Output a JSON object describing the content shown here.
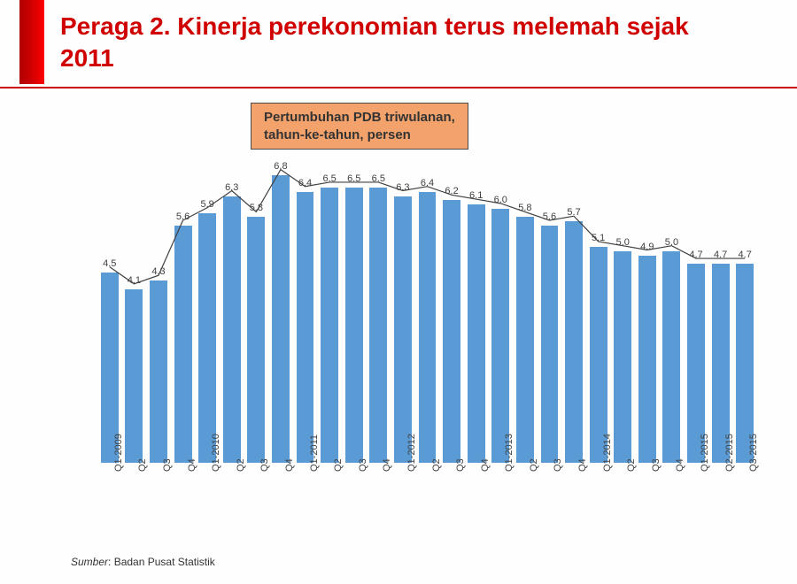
{
  "header": {
    "title": "Peraga 2. Kinerja perekonomian terus melemah sejak 2011"
  },
  "subtitle": {
    "line1": "Pertumbuhan PDB triwulanan,",
    "line2": "tahun-ke-tahun, persen"
  },
  "chart": {
    "type": "bar+line",
    "ymax": 7.0,
    "bar_color": "#5b9bd5",
    "line_color": "#404040",
    "label_color": "#404040",
    "label_fontsize": 11,
    "bar_width_ratio": 0.72,
    "categories": [
      "Q1-2009",
      "Q2",
      "Q3",
      "Q4",
      "Q1-2010",
      "Q2",
      "Q3",
      "Q4",
      "Q1-2011",
      "Q2",
      "Q3",
      "Q4",
      "Q1-2012",
      "Q2",
      "Q3",
      "Q4",
      "Q1-2013",
      "Q2",
      "Q3",
      "Q4",
      "Q1-2014",
      "Q2",
      "Q3",
      "Q4",
      "Q1-2015",
      "Q2-2015",
      "Q3-2015"
    ],
    "values": [
      4.5,
      4.1,
      4.3,
      5.6,
      5.9,
      6.3,
      5.8,
      6.8,
      6.4,
      6.5,
      6.5,
      6.5,
      6.3,
      6.4,
      6.2,
      6.1,
      6.0,
      5.8,
      5.6,
      5.7,
      5.1,
      5.0,
      4.9,
      5.0,
      4.7,
      4.7,
      4.7
    ]
  },
  "source": {
    "label": "Sumber",
    "text": ": Badan Pusat Statistik"
  }
}
